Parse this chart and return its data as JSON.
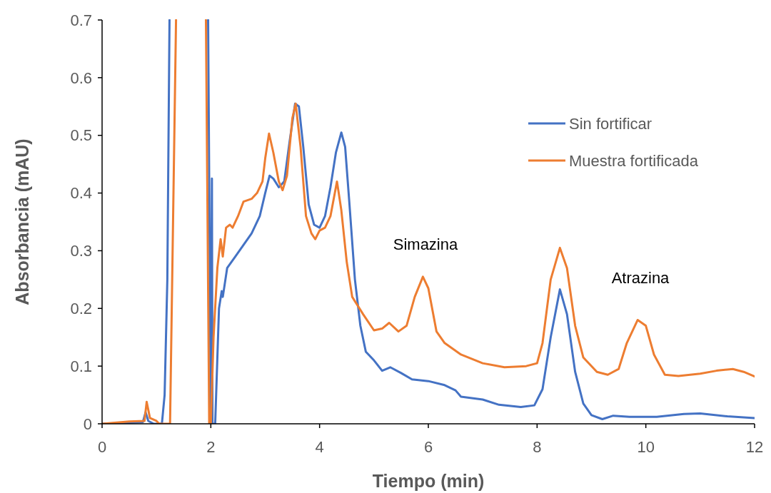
{
  "chart_data": {
    "type": "line",
    "xlabel": "Tiempo (min)",
    "ylabel": "Absorbancia (mAU)",
    "xlim": [
      0,
      12
    ],
    "xticks": [
      0,
      2,
      4,
      6,
      8,
      10,
      12
    ],
    "ylim": [
      0,
      0.7
    ],
    "yticks": [
      0,
      0.1,
      0.2,
      0.3,
      0.4,
      0.5,
      0.6,
      0.7
    ],
    "grid": false,
    "legend": "top right",
    "marker": "none",
    "line_style": "solid",
    "annotations": [
      "Simazina",
      "Atrazina"
    ],
    "series": [
      {
        "name": "Sin fortificar",
        "color": "#4472c4",
        "x": [
          0,
          0.5,
          0.75,
          0.8,
          0.85,
          0.95,
          1.05,
          1.1,
          1.15,
          1.2,
          1.24,
          1.6,
          1.95,
          2.0,
          2.02,
          2.03,
          2.08,
          2.15,
          2.2,
          2.22,
          2.3,
          2.45,
          2.6,
          2.75,
          2.9,
          3.0,
          3.08,
          3.15,
          3.25,
          3.35,
          3.45,
          3.55,
          3.62,
          3.7,
          3.8,
          3.9,
          4.0,
          4.1,
          4.2,
          4.3,
          4.4,
          4.47,
          4.55,
          4.65,
          4.75,
          4.85,
          5.0,
          5.15,
          5.3,
          5.5,
          5.7,
          6.0,
          6.3,
          6.5,
          6.6,
          7.0,
          7.3,
          7.7,
          7.95,
          8.1,
          8.25,
          8.42,
          8.55,
          8.7,
          8.85,
          9.0,
          9.2,
          9.4,
          9.7,
          10.2,
          10.7,
          11.0,
          11.5,
          12.0
        ],
        "values": [
          0,
          0.002,
          0.003,
          0.02,
          0.005,
          0,
          0,
          0,
          0.05,
          0.25,
          0.7,
          null,
          0.7,
          0,
          0.425,
          0,
          0,
          0.2,
          0.23,
          0.22,
          0.27,
          0.29,
          0.31,
          0.33,
          0.36,
          0.4,
          0.43,
          0.425,
          0.41,
          0.42,
          0.49,
          0.555,
          0.55,
          0.48,
          0.38,
          0.345,
          0.34,
          0.36,
          0.41,
          0.47,
          0.505,
          0.48,
          0.38,
          0.25,
          0.17,
          0.125,
          0.11,
          0.092,
          0.098,
          0.088,
          0.077,
          0.074,
          0.067,
          0.058,
          0.047,
          0.042,
          0.033,
          0.029,
          0.032,
          0.06,
          0.15,
          0.233,
          0.19,
          0.09,
          0.035,
          0.015,
          0.008,
          0.014,
          0.012,
          0.012,
          0.017,
          0.018,
          0.013,
          0.01
        ]
      },
      {
        "name": "Muestra fortificada",
        "color": "#ed7d31",
        "x": [
          0,
          0.5,
          0.78,
          0.82,
          0.88,
          1.0,
          1.05,
          1.2,
          1.25,
          1.36,
          1.6,
          1.91,
          1.97,
          2.0,
          2.05,
          2.12,
          2.18,
          2.22,
          2.28,
          2.35,
          2.4,
          2.5,
          2.6,
          2.75,
          2.85,
          2.95,
          3.0,
          3.07,
          3.15,
          3.25,
          3.32,
          3.4,
          3.5,
          3.56,
          3.65,
          3.75,
          3.85,
          3.92,
          4.0,
          4.1,
          4.2,
          4.32,
          4.4,
          4.5,
          4.6,
          4.8,
          5.0,
          5.15,
          5.28,
          5.45,
          5.6,
          5.75,
          5.9,
          6.0,
          6.15,
          6.3,
          6.6,
          7.0,
          7.4,
          7.8,
          8.0,
          8.1,
          8.25,
          8.42,
          8.55,
          8.7,
          8.85,
          9.1,
          9.3,
          9.5,
          9.65,
          9.85,
          10.0,
          10.15,
          10.35,
          10.6,
          11.0,
          11.3,
          11.6,
          11.8,
          12.0
        ],
        "values": [
          0,
          0.004,
          0.005,
          0.038,
          0.01,
          0.005,
          0,
          0,
          0,
          0.7,
          null,
          0.7,
          0,
          0,
          0.15,
          0.27,
          0.32,
          0.29,
          0.34,
          0.345,
          0.34,
          0.36,
          0.385,
          0.39,
          0.4,
          0.42,
          0.46,
          0.503,
          0.47,
          0.42,
          0.405,
          0.43,
          0.53,
          0.555,
          0.48,
          0.36,
          0.33,
          0.32,
          0.335,
          0.34,
          0.36,
          0.42,
          0.37,
          0.28,
          0.22,
          0.19,
          0.162,
          0.165,
          0.175,
          0.16,
          0.17,
          0.22,
          0.255,
          0.235,
          0.16,
          0.14,
          0.12,
          0.105,
          0.098,
          0.1,
          0.105,
          0.14,
          0.25,
          0.305,
          0.27,
          0.17,
          0.115,
          0.09,
          0.085,
          0.095,
          0.14,
          0.18,
          0.17,
          0.12,
          0.085,
          0.083,
          0.087,
          0.092,
          0.095,
          0.09,
          0.082
        ]
      }
    ]
  }
}
